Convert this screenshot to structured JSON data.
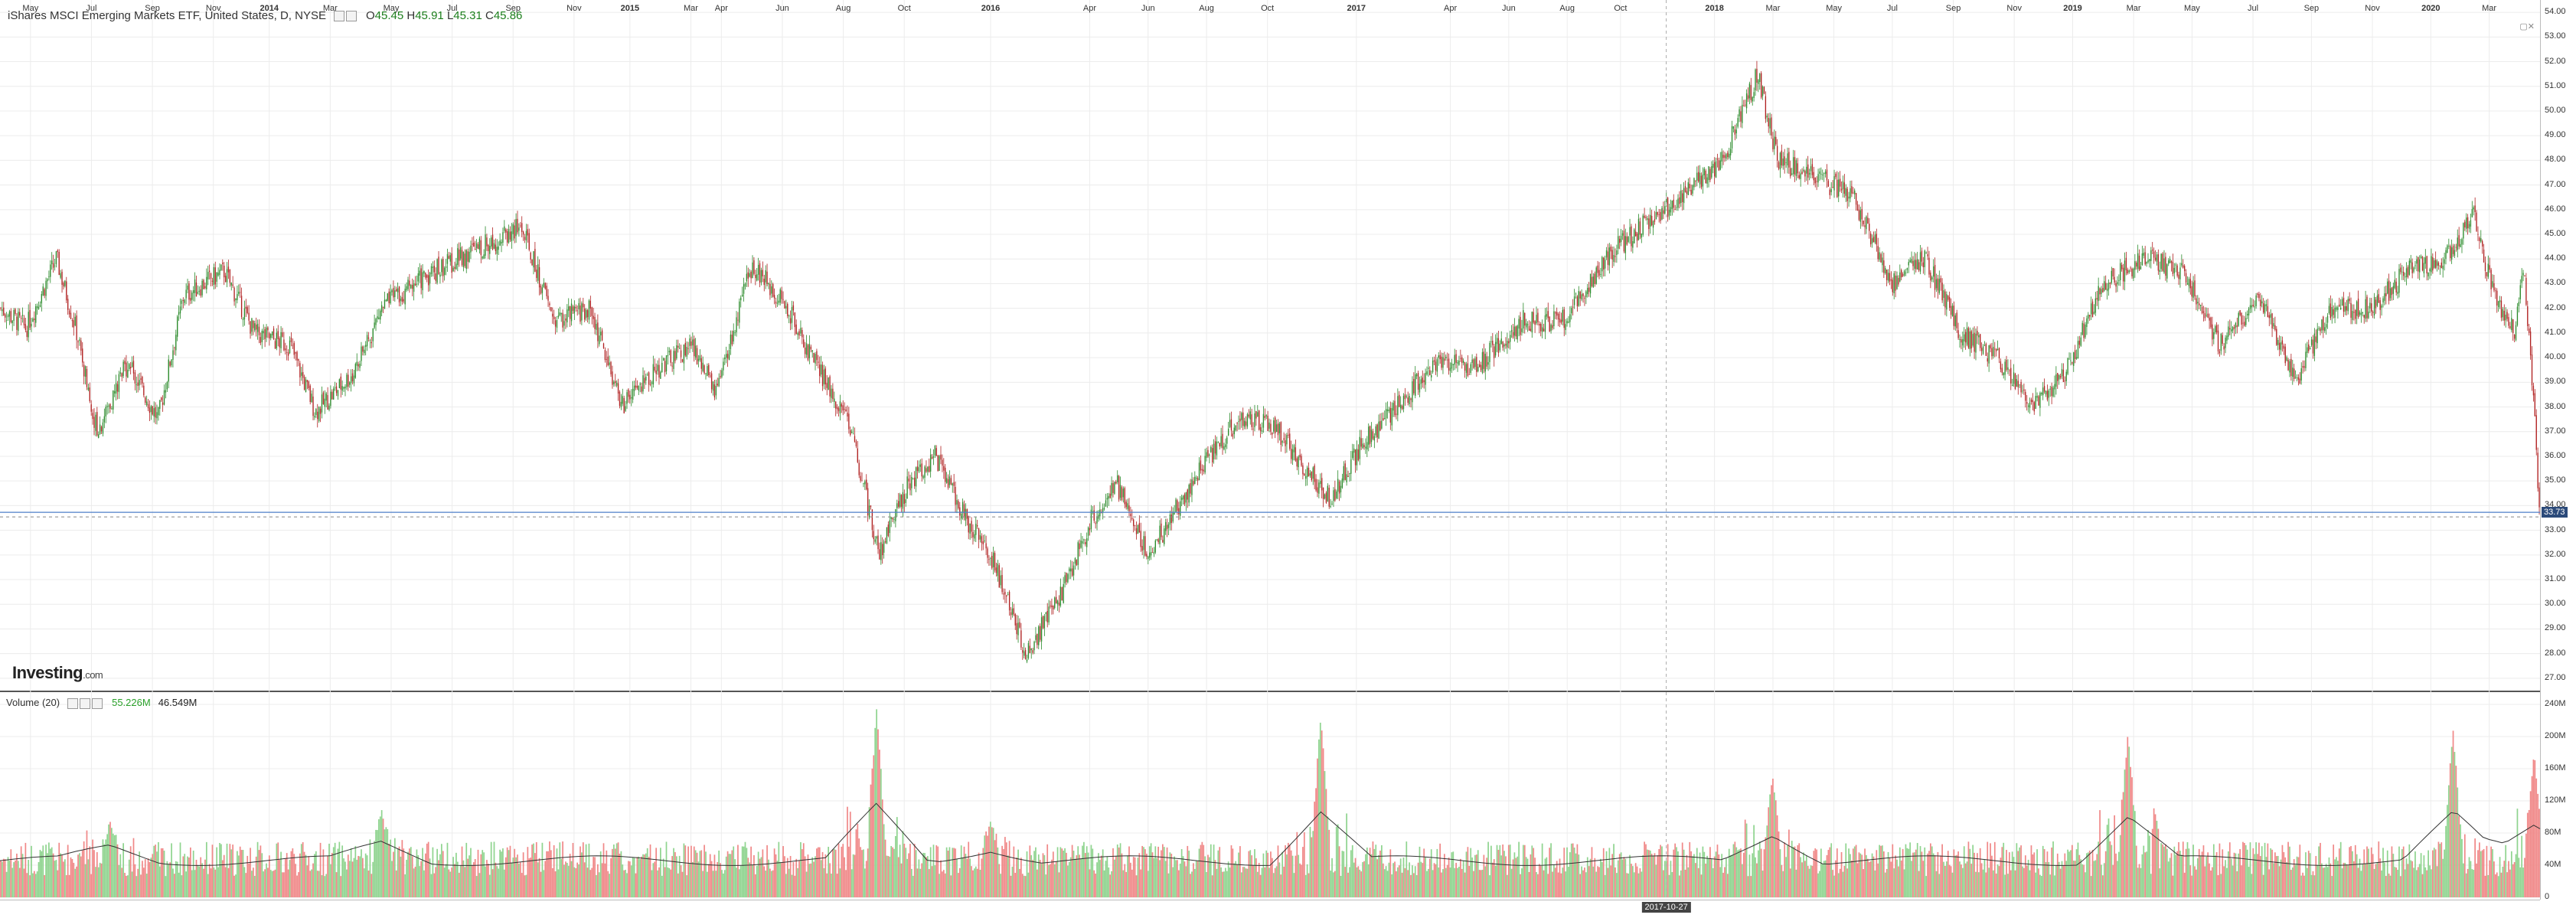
{
  "header": {
    "instrument": "iShares MSCI Emerging Markets ETF, United States, D, NYSE",
    "open_label": "O",
    "open": "45.45",
    "high_label": "H",
    "high": "45.91",
    "low_label": "L",
    "low": "45.31",
    "close_label": "C",
    "close": "45.86"
  },
  "volume_legend": {
    "title": "Volume (20)",
    "value": "55.226M",
    "ma": "46.549M"
  },
  "brand": {
    "name": "Investing",
    "suffix": ".com"
  },
  "cursor": {
    "date": "2017-10-27"
  },
  "last_price": "33.73",
  "colors": {
    "up": "#2a8a2a",
    "down": "#b02020",
    "vol_up": "#8fd48f",
    "vol_down": "#f08888",
    "grid": "#ececec",
    "price_line": "#4d7fc8",
    "ma": "#333333"
  },
  "chart_data": [
    {
      "type": "candlestick",
      "title": "",
      "ylim": [
        26.5,
        54.5
      ],
      "y_ticks": [
        "27.00",
        "28.00",
        "29.00",
        "30.00",
        "31.00",
        "32.00",
        "33.00",
        "34.00",
        "35.00",
        "36.00",
        "37.00",
        "38.00",
        "39.00",
        "40.00",
        "41.00",
        "42.00",
        "43.00",
        "44.00",
        "45.00",
        "46.00",
        "47.00",
        "48.00",
        "49.00",
        "50.00",
        "51.00",
        "52.00",
        "53.00",
        "54.00"
      ],
      "x_ticks": [
        {
          "label": "May",
          "year": false,
          "t": 0.012
        },
        {
          "label": "Jul",
          "year": false,
          "t": 0.036
        },
        {
          "label": "Sep",
          "year": false,
          "t": 0.06
        },
        {
          "label": "Nov",
          "year": false,
          "t": 0.084
        },
        {
          "label": "2014",
          "year": true,
          "t": 0.106
        },
        {
          "label": "Mar",
          "year": false,
          "t": 0.13
        },
        {
          "label": "May",
          "year": false,
          "t": 0.154
        },
        {
          "label": "Jul",
          "year": false,
          "t": 0.178
        },
        {
          "label": "Sep",
          "year": false,
          "t": 0.202
        },
        {
          "label": "Nov",
          "year": false,
          "t": 0.226
        },
        {
          "label": "2015",
          "year": true,
          "t": 0.248
        },
        {
          "label": "Mar",
          "year": false,
          "t": 0.272
        },
        {
          "label": "Apr",
          "year": false,
          "t": 0.284
        },
        {
          "label": "Jun",
          "year": false,
          "t": 0.308
        },
        {
          "label": "Aug",
          "year": false,
          "t": 0.332
        },
        {
          "label": "Oct",
          "year": false,
          "t": 0.356
        },
        {
          "label": "2016",
          "year": true,
          "t": 0.39
        },
        {
          "label": "Apr",
          "year": false,
          "t": 0.429
        },
        {
          "label": "Jun",
          "year": false,
          "t": 0.452
        },
        {
          "label": "Aug",
          "year": false,
          "t": 0.475
        },
        {
          "label": "Oct",
          "year": false,
          "t": 0.499
        },
        {
          "label": "2017",
          "year": true,
          "t": 0.534
        },
        {
          "label": "Apr",
          "year": false,
          "t": 0.571
        },
        {
          "label": "Jun",
          "year": false,
          "t": 0.594
        },
        {
          "label": "Aug",
          "year": false,
          "t": 0.617
        },
        {
          "label": "Oct",
          "year": false,
          "t": 0.638
        },
        {
          "label": "2018",
          "year": true,
          "t": 0.675
        },
        {
          "label": "Mar",
          "year": false,
          "t": 0.698
        },
        {
          "label": "May",
          "year": false,
          "t": 0.722
        },
        {
          "label": "Jul",
          "year": false,
          "t": 0.745
        },
        {
          "label": "Sep",
          "year": false,
          "t": 0.769
        },
        {
          "label": "Nov",
          "year": false,
          "t": 0.793
        },
        {
          "label": "2019",
          "year": true,
          "t": 0.816
        },
        {
          "label": "Mar",
          "year": false,
          "t": 0.84
        },
        {
          "label": "May",
          "year": false,
          "t": 0.863
        },
        {
          "label": "Jul",
          "year": false,
          "t": 0.887
        },
        {
          "label": "Sep",
          "year": false,
          "t": 0.91
        },
        {
          "label": "Nov",
          "year": false,
          "t": 0.934
        },
        {
          "label": "2020",
          "year": true,
          "t": 0.957
        },
        {
          "label": "Mar",
          "year": false,
          "t": 0.98
        }
      ],
      "anchors": [
        [
          0.0,
          42.0
        ],
        [
          0.01,
          41.2
        ],
        [
          0.022,
          44.0
        ],
        [
          0.03,
          41.0
        ],
        [
          0.038,
          37.0
        ],
        [
          0.05,
          39.8
        ],
        [
          0.062,
          37.5
        ],
        [
          0.072,
          42.5
        ],
        [
          0.088,
          43.5
        ],
        [
          0.1,
          41.0
        ],
        [
          0.114,
          40.5
        ],
        [
          0.124,
          37.8
        ],
        [
          0.14,
          39.5
        ],
        [
          0.15,
          42.0
        ],
        [
          0.17,
          43.5
        ],
        [
          0.19,
          44.5
        ],
        [
          0.205,
          45.3
        ],
        [
          0.218,
          41.5
        ],
        [
          0.232,
          42.0
        ],
        [
          0.245,
          38.0
        ],
        [
          0.258,
          39.5
        ],
        [
          0.272,
          40.5
        ],
        [
          0.282,
          38.5
        ],
        [
          0.296,
          43.8
        ],
        [
          0.31,
          42.0
        ],
        [
          0.322,
          39.5
        ],
        [
          0.334,
          37.5
        ],
        [
          0.346,
          32.0
        ],
        [
          0.358,
          35.0
        ],
        [
          0.368,
          36.0
        ],
        [
          0.38,
          33.5
        ],
        [
          0.392,
          31.5
        ],
        [
          0.404,
          28.0
        ],
        [
          0.418,
          30.5
        ],
        [
          0.43,
          33.5
        ],
        [
          0.44,
          34.8
        ],
        [
          0.452,
          32.0
        ],
        [
          0.464,
          34.0
        ],
        [
          0.476,
          36.0
        ],
        [
          0.488,
          37.5
        ],
        [
          0.502,
          37.2
        ],
        [
          0.514,
          35.5
        ],
        [
          0.524,
          34.3
        ],
        [
          0.536,
          36.5
        ],
        [
          0.55,
          38.0
        ],
        [
          0.566,
          40.0
        ],
        [
          0.58,
          39.5
        ],
        [
          0.6,
          41.5
        ],
        [
          0.616,
          41.5
        ],
        [
          0.632,
          44.0
        ],
        [
          0.648,
          45.5
        ],
        [
          0.662,
          46.5
        ],
        [
          0.678,
          48.0
        ],
        [
          0.692,
          51.5
        ],
        [
          0.7,
          48.0
        ],
        [
          0.712,
          47.5
        ],
        [
          0.73,
          46.5
        ],
        [
          0.745,
          43.0
        ],
        [
          0.758,
          44.0
        ],
        [
          0.772,
          41.0
        ],
        [
          0.786,
          40.0
        ],
        [
          0.8,
          38.0
        ],
        [
          0.814,
          39.5
        ],
        [
          0.828,
          43.0
        ],
        [
          0.845,
          44.0
        ],
        [
          0.86,
          43.5
        ],
        [
          0.874,
          40.5
        ],
        [
          0.89,
          42.5
        ],
        [
          0.904,
          39.0
        ],
        [
          0.918,
          42.0
        ],
        [
          0.934,
          42.0
        ],
        [
          0.948,
          43.5
        ],
        [
          0.962,
          44.0
        ],
        [
          0.974,
          45.8
        ],
        [
          0.982,
          42.5
        ],
        [
          0.99,
          41.0
        ],
        [
          0.994,
          43.5
        ],
        [
          0.998,
          38.0
        ],
        [
          1.0,
          33.73
        ]
      ]
    },
    {
      "type": "bar",
      "title": "Volume (20)",
      "ylim": [
        0,
        240
      ],
      "y_ticks": [
        "0",
        "40M",
        "80M",
        "120M",
        "160M",
        "200M",
        "240M"
      ],
      "spikes": [
        [
          0.043,
          95
        ],
        [
          0.15,
          110
        ],
        [
          0.345,
          235
        ],
        [
          0.39,
          95
        ],
        [
          0.52,
          225
        ],
        [
          0.698,
          150
        ],
        [
          0.838,
          205
        ],
        [
          0.966,
          210
        ],
        [
          0.998,
          180
        ]
      ],
      "baseline": 48
    }
  ]
}
